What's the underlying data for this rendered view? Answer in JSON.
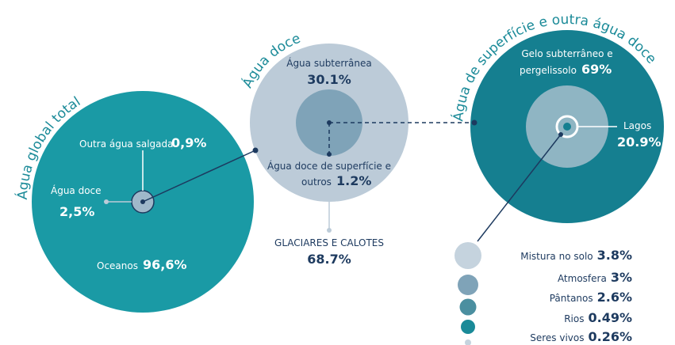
{
  "circles": [
    {
      "title": "Água global total",
      "items": [
        {
          "label": "Outra água salgada",
          "value": "0,9%"
        },
        {
          "label": "Água doce",
          "value": "2,5%"
        },
        {
          "label": "Oceanos",
          "value": "96,6%"
        }
      ]
    },
    {
      "title": "Água doce",
      "items": [
        {
          "label": "Água subterrânea",
          "value": "30.1%"
        },
        {
          "label": "Água doce de superfície e",
          "label2": "outros",
          "value": "1.2%"
        },
        {
          "label": "GLACIARES E CALOTES",
          "value": "68.7%"
        }
      ]
    },
    {
      "title": "Água de superfície e outra água doce",
      "items": [
        {
          "label": "Gelo subterrâneo e",
          "label2": "pergelissolo",
          "value": "69%"
        },
        {
          "label": "Lagos",
          "value": "20.9%"
        }
      ]
    }
  ],
  "legend": [
    {
      "label": "Mistura no solo",
      "value": "3.8%"
    },
    {
      "label": "Atmosfera",
      "value": "3%"
    },
    {
      "label": "Pântanos",
      "value": "2.6%"
    },
    {
      "label": "Rios",
      "value": "0.49%"
    },
    {
      "label": "Seres vivos",
      "value": "0.26%"
    }
  ]
}
